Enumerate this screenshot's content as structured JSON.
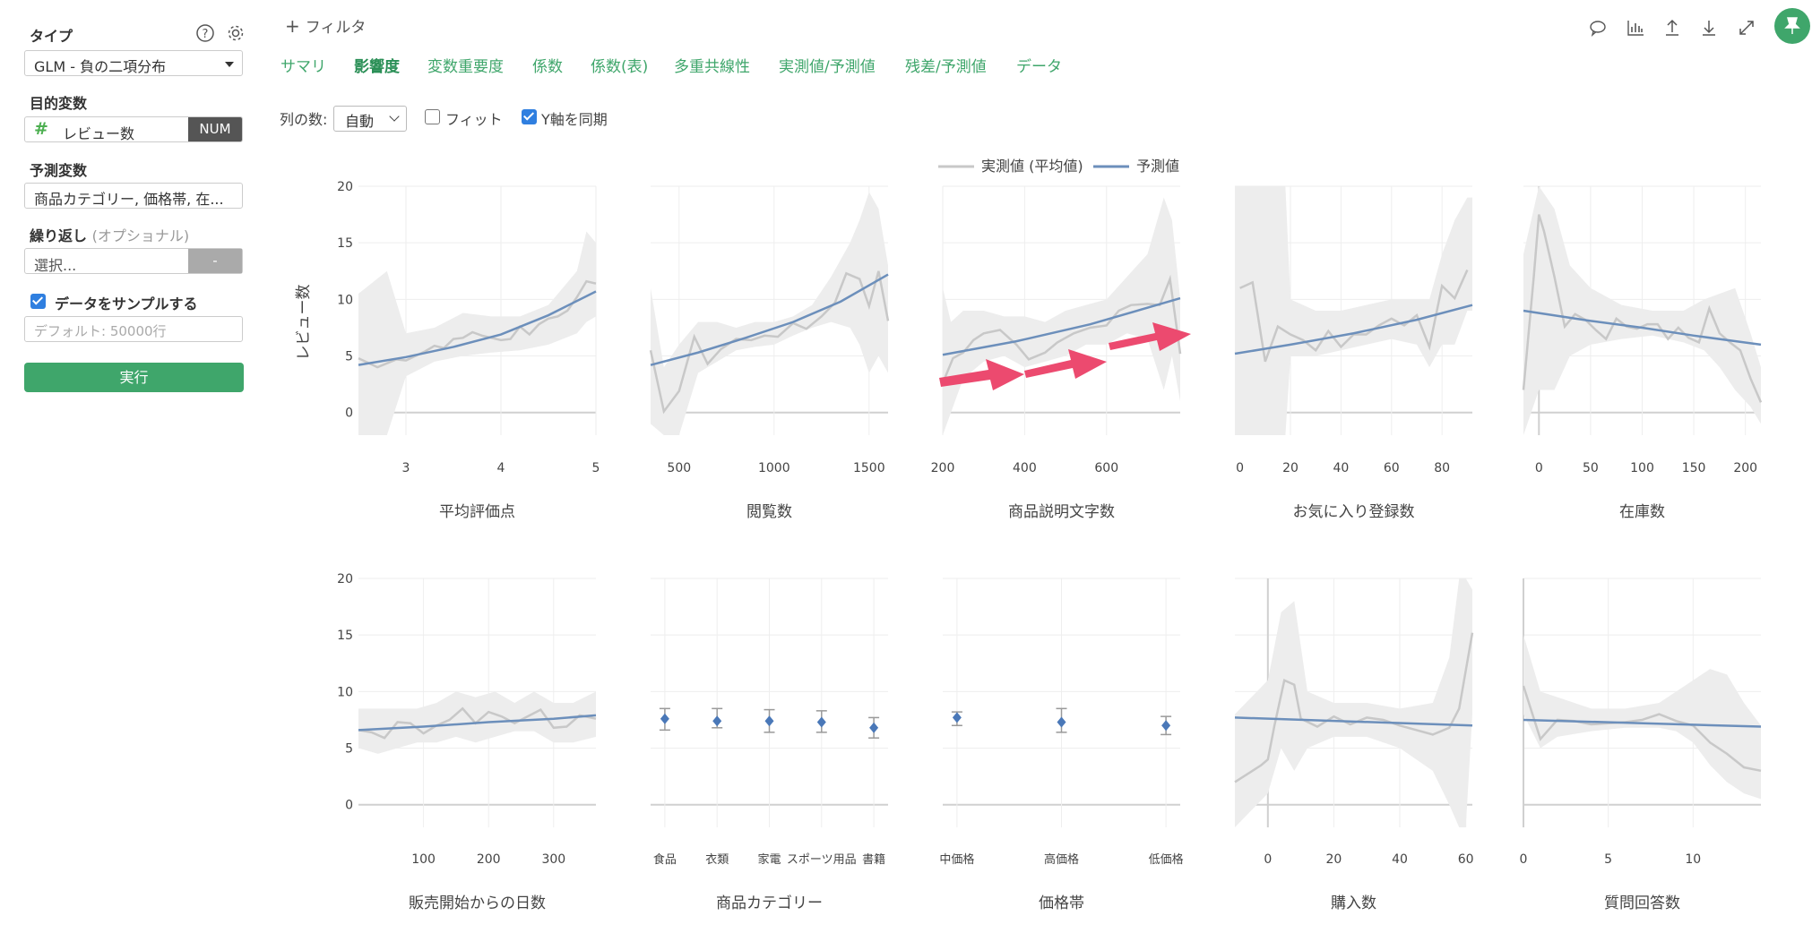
{
  "sidebar": {
    "type_label": "タイプ",
    "type_value": "GLM - 負の二項分布",
    "target_label": "目的変数",
    "target_value": "レビュー数",
    "target_badge": "NUM",
    "target_icon": "hash-icon",
    "predictor_label": "予測変数",
    "predictor_value": "商品カテゴリー, 価格帯, 在...",
    "repeat_label": "繰り返し",
    "repeat_optional": "(オプショナル)",
    "repeat_placeholder": "選択...",
    "repeat_button": "-",
    "sample_label": "データをサンプルする",
    "sample_checked": true,
    "sample_placeholder": "デフォルト: 50000行",
    "run_label": "実行"
  },
  "header": {
    "filter_label": "フィルタ",
    "tabs": [
      "サマリ",
      "影響度",
      "変数重要度",
      "係数",
      "係数(表)",
      "多重共線性",
      "実測値/予測値",
      "残差/予測値",
      "データ"
    ],
    "active_tab": "影響度",
    "toolbar_icons": [
      "comment-icon",
      "bar-chart-icon",
      "upload-icon",
      "download-icon",
      "expand-icon",
      "pin-icon"
    ]
  },
  "controls": {
    "columns_label": "列の数:",
    "columns_value": "自動",
    "fit_label": "フィット",
    "fit_checked": false,
    "sync_label": "Y軸を同期",
    "sync_checked": true
  },
  "colors": {
    "accent": "#3fa66b",
    "actual_line": "#c8c8c8",
    "predicted_line": "#6c8fbb",
    "band": "#ececec",
    "arrow": "#ec4a6f"
  },
  "chart_data": [
    {
      "type": "line",
      "xlabel": "平均評価点",
      "ylabel": "レビュー数",
      "ylim": [
        -2,
        20
      ],
      "yticks": [
        0,
        5,
        10,
        15,
        20
      ],
      "xlim": [
        2.5,
        5
      ],
      "xticks": [
        3,
        4,
        5
      ],
      "legend": [
        "実測値 (平均値)",
        "予測値"
      ],
      "legend_position": "top",
      "series": [
        {
          "name": "実測値 (平均値)",
          "x": [
            2.5,
            2.7,
            2.9,
            3.0,
            3.1,
            3.2,
            3.3,
            3.4,
            3.5,
            3.6,
            3.7,
            3.8,
            3.9,
            4.0,
            4.1,
            4.2,
            4.3,
            4.4,
            4.5,
            4.6,
            4.7,
            4.8,
            4.9,
            5.0
          ],
          "values": [
            4.8,
            4.0,
            4.7,
            4.6,
            5.0,
            5.4,
            5.9,
            5.7,
            6.5,
            6.6,
            7.1,
            6.8,
            6.6,
            6.4,
            6.5,
            7.6,
            6.9,
            7.8,
            8.3,
            8.5,
            9.0,
            10.2,
            11.6,
            11.4
          ]
        },
        {
          "name": "予測値",
          "x": [
            2.5,
            3.0,
            3.5,
            4.0,
            4.5,
            5.0
          ],
          "values": [
            4.2,
            4.9,
            5.8,
            6.9,
            8.6,
            10.7
          ]
        },
        {
          "name": "band",
          "x": [
            2.5,
            2.8,
            3.0,
            3.3,
            3.6,
            3.9,
            4.2,
            4.5,
            4.8,
            4.9,
            5.0
          ],
          "lower": [
            -2,
            -2,
            3.2,
            4.5,
            5.0,
            5.3,
            5.5,
            6.0,
            7.0,
            8.0,
            8.5
          ],
          "upper": [
            10.5,
            12.5,
            7.0,
            7.5,
            8.8,
            8.5,
            8.5,
            9.5,
            12.5,
            16.0,
            15.0
          ]
        }
      ]
    },
    {
      "type": "line",
      "xlabel": "閲覧数",
      "ylim": [
        -2,
        20
      ],
      "xlim": [
        350,
        1600
      ],
      "xticks": [
        500,
        1000,
        1500
      ],
      "series": [
        {
          "name": "実測値 (平均値)",
          "x": [
            350,
            420,
            500,
            580,
            650,
            720,
            800,
            880,
            950,
            1020,
            1100,
            1170,
            1250,
            1320,
            1380,
            1450,
            1500,
            1550,
            1600
          ],
          "values": [
            5.5,
            0.1,
            1.9,
            6.7,
            4.3,
            5.6,
            6.5,
            6.4,
            6.8,
            6.7,
            7.9,
            7.4,
            8.5,
            9.7,
            12.3,
            11.8,
            9.4,
            12.5,
            8.1
          ]
        },
        {
          "name": "予測値",
          "x": [
            350,
            600,
            850,
            1100,
            1350,
            1600
          ],
          "values": [
            4.2,
            5.3,
            6.6,
            8.0,
            9.8,
            12.2
          ]
        },
        {
          "name": "band",
          "x": [
            350,
            420,
            500,
            600,
            700,
            800,
            900,
            1000,
            1100,
            1200,
            1300,
            1400,
            1450,
            1500,
            1550,
            1600
          ],
          "lower": [
            -1,
            -2,
            -2,
            3.5,
            4.5,
            5.5,
            5.8,
            6.0,
            6.8,
            7.5,
            8.0,
            7.5,
            6.0,
            3.5,
            5.0,
            3.5
          ],
          "upper": [
            11,
            4,
            6,
            8,
            8,
            7.5,
            8,
            8,
            8.5,
            9.5,
            12,
            15,
            17,
            19.5,
            18,
            13
          ]
        }
      ]
    },
    {
      "type": "line",
      "xlabel": "商品説明文字数",
      "ylim": [
        -2,
        20
      ],
      "xlim": [
        200,
        780
      ],
      "xticks": [
        200,
        400,
        600
      ],
      "series": [
        {
          "name": "実測値 (平均値)",
          "x": [
            200,
            225,
            250,
            275,
            300,
            340,
            380,
            410,
            450,
            480,
            520,
            560,
            600,
            630,
            660,
            700,
            730,
            755,
            780
          ],
          "values": [
            2.6,
            4.8,
            5.3,
            6.4,
            7.0,
            7.3,
            6.0,
            4.7,
            5.3,
            6.2,
            7.0,
            7.5,
            7.7,
            9.0,
            9.5,
            9.6,
            9.5,
            11.8,
            5.2
          ]
        },
        {
          "name": "予測値",
          "x": [
            200,
            380,
            560,
            780
          ],
          "values": [
            5.1,
            6.3,
            7.8,
            10.1
          ]
        },
        {
          "name": "band",
          "x": [
            200,
            220,
            250,
            300,
            350,
            400,
            450,
            500,
            550,
            600,
            650,
            700,
            740,
            760,
            780
          ],
          "lower": [
            -2,
            0,
            3,
            4.5,
            5.0,
            4.0,
            4.5,
            5.0,
            6.0,
            6.0,
            7.0,
            6.5,
            2.0,
            5.0,
            1.0
          ],
          "upper": [
            11,
            8,
            9,
            9,
            8.5,
            8.5,
            8.0,
            9.0,
            9.5,
            10,
            12,
            14,
            19,
            17,
            10
          ]
        }
      ]
    },
    {
      "type": "line",
      "xlabel": "お気に入り登録数",
      "ylim": [
        -2,
        20
      ],
      "xlim": [
        -2,
        92
      ],
      "xticks": [
        0,
        20,
        40,
        60,
        80
      ],
      "series": [
        {
          "name": "実測値 (平均値)",
          "x": [
            0,
            5,
            10,
            15,
            20,
            25,
            30,
            35,
            40,
            45,
            50,
            55,
            60,
            65,
            70,
            75,
            80,
            85,
            90
          ],
          "values": [
            11.0,
            11.5,
            4.5,
            7.6,
            6.9,
            6.4,
            5.5,
            7.2,
            5.8,
            6.9,
            6.9,
            7.7,
            8.3,
            7.7,
            8.6,
            5.8,
            11.2,
            10.1,
            12.6
          ]
        },
        {
          "name": "予測値",
          "x": [
            -2,
            20,
            45,
            70,
            92
          ],
          "values": [
            5.2,
            6.0,
            7.0,
            8.2,
            9.5
          ]
        },
        {
          "name": "band",
          "x": [
            -2,
            0,
            18,
            20,
            30,
            40,
            50,
            60,
            70,
            75,
            80,
            85,
            90,
            92
          ],
          "lower": [
            -2,
            -2,
            -2,
            5,
            5,
            5.5,
            6,
            6.5,
            6,
            4,
            6,
            6,
            9,
            9
          ],
          "upper": [
            20,
            20,
            20,
            10,
            9,
            9,
            9.5,
            10,
            10,
            10,
            14,
            17,
            19,
            19
          ]
        }
      ]
    },
    {
      "type": "line",
      "xlabel": "在庫数",
      "ylim": [
        -2,
        20
      ],
      "xlim": [
        -15,
        215
      ],
      "xticks": [
        0,
        50,
        100,
        150,
        200
      ],
      "series": [
        {
          "name": "実測値 (平均値)",
          "x": [
            -15,
            -5,
            0,
            5,
            15,
            25,
            35,
            45,
            55,
            65,
            75,
            85,
            95,
            105,
            115,
            125,
            135,
            145,
            155,
            165,
            175,
            185,
            195,
            205,
            215
          ],
          "values": [
            2.0,
            12.0,
            17.5,
            16.0,
            12.0,
            7.6,
            8.7,
            8.2,
            7.3,
            6.5,
            8.3,
            7.6,
            7.4,
            7.8,
            7.8,
            6.5,
            7.5,
            6.6,
            6.2,
            9.2,
            7.0,
            6.2,
            5.5,
            3.0,
            0.9
          ]
        },
        {
          "name": "予測値",
          "x": [
            -15,
            50,
            100,
            150,
            215
          ],
          "values": [
            9.0,
            8.1,
            7.5,
            6.8,
            6.0
          ]
        },
        {
          "name": "band",
          "x": [
            -15,
            0,
            15,
            30,
            50,
            80,
            110,
            140,
            160,
            175,
            190,
            205,
            215
          ],
          "lower": [
            -2,
            2,
            2,
            5,
            6,
            6.5,
            6.8,
            6.2,
            5.5,
            4,
            2,
            0.5,
            -1
          ],
          "upper": [
            14,
            20,
            18,
            13,
            11,
            9.5,
            9,
            9,
            10,
            10.5,
            11,
            7,
            4
          ]
        }
      ]
    },
    {
      "type": "line",
      "xlabel": "販売開始からの日数",
      "ylim": [
        -2,
        20
      ],
      "xlim": [
        0,
        365
      ],
      "xticks": [
        100,
        200,
        300
      ],
      "series": [
        {
          "name": "実測値 (平均値)",
          "x": [
            0,
            20,
            40,
            60,
            80,
            100,
            120,
            140,
            160,
            180,
            200,
            220,
            240,
            260,
            280,
            300,
            320,
            340,
            365
          ],
          "values": [
            6.6,
            6.4,
            5.9,
            7.3,
            7.2,
            6.3,
            7.0,
            7.5,
            8.5,
            7.2,
            8.2,
            7.8,
            7.2,
            7.8,
            8.4,
            6.8,
            6.9,
            7.9,
            7.6
          ]
        },
        {
          "name": "予測値",
          "x": [
            0,
            100,
            200,
            300,
            365
          ],
          "values": [
            6.6,
            6.9,
            7.3,
            7.6,
            7.9
          ]
        },
        {
          "name": "band",
          "x": [
            0,
            30,
            60,
            90,
            120,
            150,
            180,
            210,
            240,
            270,
            300,
            330,
            365
          ],
          "lower": [
            5,
            4.5,
            5,
            5.5,
            5.5,
            6,
            5.5,
            6,
            6.5,
            6.5,
            5.5,
            5.5,
            6
          ],
          "upper": [
            8.5,
            8.5,
            8.5,
            8.5,
            9,
            10,
            9.5,
            10,
            9,
            10,
            9,
            9,
            10
          ]
        }
      ]
    },
    {
      "type": "scatter",
      "xlabel": "商品カテゴリー",
      "ylim": [
        -2,
        20
      ],
      "categories": [
        "食品",
        "衣類",
        "家電",
        "スポーツ用品",
        "書籍"
      ],
      "series": [
        {
          "name": "予測値",
          "values": [
            7.6,
            7.4,
            7.4,
            7.3,
            6.8
          ],
          "err_low": [
            6.6,
            6.8,
            6.4,
            6.4,
            5.9
          ],
          "err_high": [
            8.5,
            8.5,
            8.4,
            8.3,
            7.7
          ]
        }
      ]
    },
    {
      "type": "scatter",
      "xlabel": "価格帯",
      "ylim": [
        -2,
        20
      ],
      "categories": [
        "中価格",
        "高価格",
        "低価格"
      ],
      "series": [
        {
          "name": "予測値",
          "values": [
            7.7,
            7.3,
            7.0
          ],
          "err_low": [
            7.0,
            6.4,
            6.2
          ],
          "err_high": [
            8.2,
            8.5,
            7.8
          ]
        }
      ]
    },
    {
      "type": "line",
      "xlabel": "購入数",
      "ylim": [
        -2,
        20
      ],
      "xlim": [
        -10,
        62
      ],
      "xticks": [
        0,
        20,
        40,
        60
      ],
      "series": [
        {
          "name": "実測値 (平均値)",
          "x": [
            -10,
            -2,
            0,
            2,
            5,
            8,
            10,
            15,
            20,
            25,
            30,
            35,
            40,
            45,
            50,
            55,
            58,
            62
          ],
          "values": [
            2.0,
            3.5,
            4.0,
            7.0,
            11.0,
            10.6,
            7.6,
            6.9,
            7.8,
            7.1,
            7.7,
            7.5,
            7.0,
            6.6,
            6.2,
            6.8,
            8.5,
            15.2
          ]
        },
        {
          "name": "予測値",
          "x": [
            -10,
            62
          ],
          "values": [
            7.7,
            7.0
          ]
        },
        {
          "name": "band",
          "x": [
            -10,
            0,
            4,
            8,
            12,
            20,
            30,
            40,
            50,
            55,
            58,
            60,
            62
          ],
          "lower": [
            -2,
            1,
            5,
            3,
            5,
            6,
            6,
            5,
            3,
            0,
            -2,
            -2,
            8
          ],
          "upper": [
            8,
            11,
            17,
            18,
            10,
            9,
            9,
            8.5,
            9,
            13,
            20,
            20,
            19
          ]
        }
      ]
    },
    {
      "type": "line",
      "xlabel": "質問回答数",
      "ylim": [
        -2,
        20
      ],
      "xlim": [
        0,
        14
      ],
      "xticks": [
        0,
        5,
        10
      ],
      "series": [
        {
          "name": "実測値 (平均値)",
          "x": [
            0,
            1,
            2,
            3,
            4,
            5,
            6,
            7,
            8,
            9,
            10,
            11,
            12,
            13,
            14
          ],
          "values": [
            10.5,
            5.8,
            7.5,
            7.4,
            7.1,
            7.2,
            7.3,
            7.5,
            8.0,
            7.4,
            7.0,
            5.5,
            4.5,
            3.3,
            3.0
          ]
        },
        {
          "name": "予測値",
          "x": [
            0,
            14
          ],
          "values": [
            7.5,
            6.9
          ]
        },
        {
          "name": "band",
          "x": [
            0,
            1,
            2,
            4,
            6,
            8,
            9,
            10,
            11,
            12,
            13,
            14
          ],
          "lower": [
            8,
            5,
            6,
            6.5,
            6.8,
            6.8,
            6.5,
            5.5,
            3.5,
            2,
            1,
            0.5
          ],
          "upper": [
            15,
            10,
            9.5,
            8.5,
            8.5,
            9,
            10,
            11,
            12,
            11.5,
            9,
            7
          ]
        }
      ]
    }
  ]
}
